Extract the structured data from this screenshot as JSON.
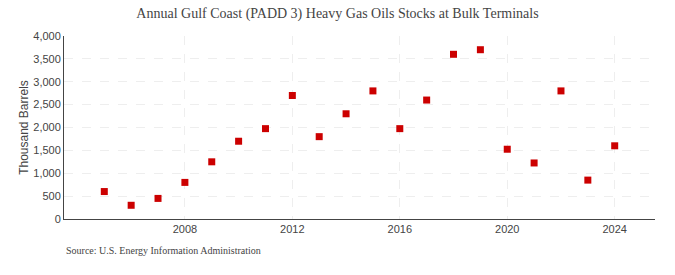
{
  "chart_data": {
    "type": "scatter",
    "title": "Annual Gulf Coast (PADD 3) Heavy Gas Oils Stocks at Bulk Terminals",
    "ylabel": "Thousand Barrels",
    "source": "Source: U.S. Energy Information Administration",
    "x": [
      2005,
      2006,
      2007,
      2008,
      2009,
      2010,
      2011,
      2012,
      2013,
      2014,
      2015,
      2016,
      2017,
      2018,
      2019,
      2020,
      2021,
      2022,
      2023,
      2024
    ],
    "values": [
      600,
      300,
      450,
      800,
      1250,
      1700,
      1975,
      2700,
      1800,
      2300,
      2800,
      1975,
      2600,
      3600,
      3700,
      1525,
      1225,
      2800,
      850,
      1600
    ],
    "color": "#cc0000",
    "marker": "square",
    "xlim": [
      2003.5,
      2025.5
    ],
    "xticks": [
      2008,
      2012,
      2016,
      2020,
      2024
    ],
    "ylim": [
      0,
      4000
    ],
    "yticks": [
      0,
      500,
      {
        "value": 1000,
        "label": "1,000"
      },
      {
        "value": 1500,
        "label": "1,500"
      },
      {
        "value": 2000,
        "label": "2,000"
      },
      {
        "value": 2500,
        "label": "2,500"
      },
      {
        "value": 3000,
        "label": "3,000"
      },
      {
        "value": 3500,
        "label": "3,500"
      },
      {
        "value": 4000,
        "label": "4,000"
      }
    ],
    "grid": true
  }
}
